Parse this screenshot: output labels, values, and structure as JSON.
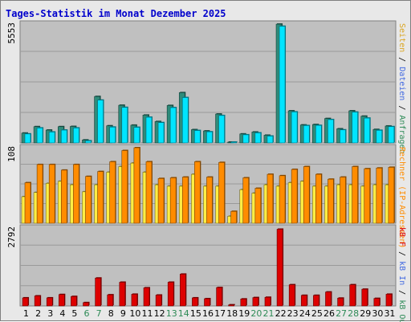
{
  "chart_data": {
    "type": "bar",
    "title": "Tages-Statistik im Monat Dezember 2025",
    "categories": [
      "1",
      "2",
      "3",
      "4",
      "5",
      "6",
      "7",
      "8",
      "9",
      "10",
      "11",
      "12",
      "13",
      "14",
      "15",
      "16",
      "17",
      "18",
      "19",
      "20",
      "21",
      "22",
      "23",
      "24",
      "25",
      "26",
      "27",
      "28",
      "29",
      "30",
      "31"
    ],
    "weekend_days": [
      "6",
      "7",
      "13",
      "14",
      "20",
      "21",
      "27",
      "28"
    ],
    "panels": [
      {
        "name": "requests",
        "max_label": "5553",
        "ylim": [
          0,
          5553
        ],
        "series": [
          {
            "name": "Seiten",
            "color": "#2e8b7a",
            "values": [
              460,
              760,
              600,
              760,
              770,
              140,
              2170,
              800,
              1760,
              830,
              1300,
              1000,
              1750,
              2350,
              620,
              560,
              1350,
              20,
              420,
              510,
              360,
              5550,
              1500,
              840,
              860,
              1140,
              660,
              1500,
              1250,
              630,
              790
            ]
          },
          {
            "name": "Dateien",
            "color": "#00e5ff",
            "values": [
              420,
              700,
              510,
              600,
              700,
              100,
              2000,
              740,
              1660,
              730,
              1200,
              950,
              1650,
              2120,
              580,
              520,
              1280,
              15,
              380,
              470,
              320,
              5450,
              1450,
              810,
              820,
              1090,
              610,
              1440,
              1160,
              590,
              760
            ]
          }
        ]
      },
      {
        "name": "ips",
        "max_label": "108",
        "ylim": [
          0,
          108
        ],
        "series": [
          {
            "name": "Rechner (IP-Adressen)",
            "color": "#ffee44",
            "values": [
              38,
              44,
              57,
              60,
              55,
              45,
              55,
              73,
              81,
              86,
              73,
              55,
              53,
              53,
              70,
              53,
              53,
              10,
              48,
              43,
              55,
              53,
              58,
              60,
              53,
              53,
              55,
              55,
              53,
              55,
              55
            ]
          },
          {
            "name": "Anfragen Rechner",
            "color": "#ff8c00",
            "values": [
              58,
              84,
              84,
              76,
              84,
              67,
              74,
              88,
              104,
              108,
              88,
              64,
              65,
              66,
              88,
              66,
              87,
              17,
              65,
              50,
              70,
              68,
              77,
              81,
              70,
              63,
              66,
              81,
              78,
              79,
              80
            ]
          }
        ]
      },
      {
        "name": "kbytes",
        "max_label": "2792",
        "ylim": [
          0,
          2792
        ],
        "series": [
          {
            "name": "kB F",
            "color": "#dd0000",
            "values": [
              290,
              360,
              290,
              410,
              340,
              120,
              1000,
              400,
              850,
              420,
              650,
              390,
              850,
              1140,
              290,
              260,
              660,
              40,
              250,
              300,
              310,
              2750,
              760,
              380,
              380,
              500,
              280,
              760,
              600,
              270,
              420
            ]
          }
        ]
      }
    ],
    "legend_side": [
      "Anfragen",
      "Dateien",
      "Seiten",
      "Rechner (IP-Adressen)",
      "kB F",
      "kB In",
      "kB Out"
    ],
    "grid": true
  },
  "colors": {
    "title": "#0000cc",
    "panel_bg": "#c0c0c0",
    "weekday_label": "#000000",
    "weekend_label": "#2e8b57",
    "legend_anfragen": "#2e8b57",
    "legend_dateien": "#4169e1",
    "legend_seiten": "#daa520",
    "legend_rechner": "#ff8c00",
    "legend_kbf": "#dd0000",
    "legend_kbin": "#4169e1",
    "legend_kbout": "#2e8b57"
  }
}
